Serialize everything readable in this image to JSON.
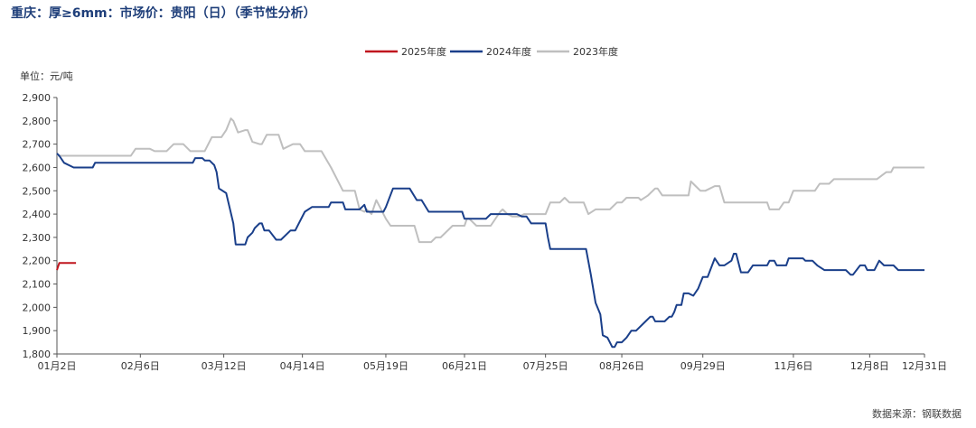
{
  "title": "重庆：厚≥6mm：市场价：贵阳（日）（季节性分析）",
  "source": "数据来源：钢联数据",
  "chart_data": {
    "type": "line",
    "title": "重庆：厚≥6mm：市场价：贵阳（日）（季节性分析）",
    "unit_label": "单位：元/吨",
    "ylim": [
      1800,
      2900
    ],
    "yticks": [
      1800,
      1900,
      2000,
      2100,
      2200,
      2300,
      2400,
      2500,
      2600,
      2700,
      2800,
      2900
    ],
    "ytick_labels": [
      "1,800",
      "1,900",
      "2,000",
      "2,100",
      "2,200",
      "2,300",
      "2,400",
      "2,500",
      "2,600",
      "2,700",
      "2,800",
      "2,900"
    ],
    "xticks": [
      "01-02",
      "02-06",
      "03-12",
      "04-14",
      "05-19",
      "06-21",
      "07-25",
      "08-26",
      "09-29",
      "11-06",
      "12-08",
      "12-31"
    ],
    "xtick_labels": [
      "01月2日",
      "02月6日",
      "03月12日",
      "04月14日",
      "05月19日",
      "06月21日",
      "07月25日",
      "08月26日",
      "09月29日",
      "11月6日",
      "12月8日",
      "12月31日"
    ],
    "legend_position": "top-center",
    "grid": false,
    "series": [
      {
        "name": "2025年度",
        "color": "#c0161e",
        "points": [
          [
            "01-02",
            2160
          ],
          [
            "01-03",
            2190
          ],
          [
            "01-04",
            2190
          ],
          [
            "01-10",
            2190
          ]
        ]
      },
      {
        "name": "2024年度",
        "color": "#1a3f8a",
        "points": [
          [
            "01-02",
            2660
          ],
          [
            "01-03",
            2650
          ],
          [
            "01-05",
            2620
          ],
          [
            "01-09",
            2600
          ],
          [
            "01-17",
            2600
          ],
          [
            "01-18",
            2620
          ],
          [
            "02-23",
            2620
          ],
          [
            "02-28",
            2620
          ],
          [
            "02-29",
            2640
          ],
          [
            "03-03",
            2640
          ],
          [
            "03-04",
            2630
          ],
          [
            "03-06",
            2630
          ],
          [
            "03-08",
            2610
          ],
          [
            "03-09",
            2580
          ],
          [
            "03-10",
            2510
          ],
          [
            "03-13",
            2490
          ],
          [
            "03-16",
            2360
          ],
          [
            "03-17",
            2270
          ],
          [
            "03-21",
            2270
          ],
          [
            "03-22",
            2300
          ],
          [
            "03-24",
            2320
          ],
          [
            "03-25",
            2340
          ],
          [
            "03-27",
            2360
          ],
          [
            "03-28",
            2360
          ],
          [
            "03-29",
            2330
          ],
          [
            "03-31",
            2330
          ],
          [
            "04-03",
            2290
          ],
          [
            "04-05",
            2290
          ],
          [
            "04-09",
            2330
          ],
          [
            "04-11",
            2330
          ],
          [
            "04-13",
            2370
          ],
          [
            "04-15",
            2410
          ],
          [
            "04-18",
            2430
          ],
          [
            "04-25",
            2430
          ],
          [
            "04-26",
            2450
          ],
          [
            "05-01",
            2450
          ],
          [
            "05-02",
            2420
          ],
          [
            "05-08",
            2420
          ],
          [
            "05-10",
            2440
          ],
          [
            "05-11",
            2410
          ],
          [
            "05-18",
            2410
          ],
          [
            "05-19",
            2430
          ],
          [
            "05-22",
            2510
          ],
          [
            "05-29",
            2510
          ],
          [
            "06-01",
            2460
          ],
          [
            "06-03",
            2460
          ],
          [
            "06-06",
            2410
          ],
          [
            "06-20",
            2410
          ],
          [
            "06-21",
            2380
          ],
          [
            "06-30",
            2380
          ],
          [
            "07-02",
            2400
          ],
          [
            "07-13",
            2400
          ],
          [
            "07-15",
            2390
          ],
          [
            "07-17",
            2390
          ],
          [
            "07-19",
            2360
          ],
          [
            "07-25",
            2360
          ],
          [
            "07-26",
            2300
          ],
          [
            "07-27",
            2250
          ],
          [
            "08-11",
            2250
          ],
          [
            "08-13",
            2140
          ],
          [
            "08-15",
            2020
          ],
          [
            "08-17",
            1970
          ],
          [
            "08-18",
            1880
          ],
          [
            "08-20",
            1870
          ],
          [
            "08-22",
            1830
          ],
          [
            "08-23",
            1830
          ],
          [
            "08-24",
            1850
          ],
          [
            "08-26",
            1850
          ],
          [
            "08-28",
            1870
          ],
          [
            "08-30",
            1900
          ],
          [
            "09-01",
            1900
          ],
          [
            "09-05",
            1940
          ],
          [
            "09-07",
            1960
          ],
          [
            "09-08",
            1960
          ],
          [
            "09-09",
            1940
          ],
          [
            "09-13",
            1940
          ],
          [
            "09-15",
            1960
          ],
          [
            "09-16",
            1960
          ],
          [
            "09-17",
            1980
          ],
          [
            "09-18",
            2010
          ],
          [
            "09-20",
            2010
          ],
          [
            "09-21",
            2060
          ],
          [
            "09-23",
            2060
          ],
          [
            "09-25",
            2050
          ],
          [
            "09-27",
            2080
          ],
          [
            "09-29",
            2130
          ],
          [
            "10-01",
            2130
          ],
          [
            "10-04",
            2210
          ],
          [
            "10-06",
            2180
          ],
          [
            "10-08",
            2180
          ],
          [
            "10-11",
            2200
          ],
          [
            "10-12",
            2230
          ],
          [
            "10-13",
            2230
          ],
          [
            "10-15",
            2150
          ],
          [
            "10-18",
            2150
          ],
          [
            "10-20",
            2180
          ],
          [
            "10-26",
            2180
          ],
          [
            "10-27",
            2200
          ],
          [
            "10-29",
            2200
          ],
          [
            "10-30",
            2180
          ],
          [
            "11-03",
            2180
          ],
          [
            "11-04",
            2210
          ],
          [
            "11-10",
            2210
          ],
          [
            "11-11",
            2200
          ],
          [
            "11-14",
            2200
          ],
          [
            "11-16",
            2180
          ],
          [
            "11-19",
            2160
          ],
          [
            "11-28",
            2160
          ],
          [
            "11-30",
            2140
          ],
          [
            "12-01",
            2140
          ],
          [
            "12-04",
            2180
          ],
          [
            "12-06",
            2180
          ],
          [
            "12-07",
            2160
          ],
          [
            "12-10",
            2160
          ],
          [
            "12-12",
            2200
          ],
          [
            "12-14",
            2180
          ],
          [
            "12-18",
            2180
          ],
          [
            "12-20",
            2160
          ],
          [
            "12-31",
            2160
          ]
        ]
      },
      {
        "name": "2023年度",
        "color": "#bfbfbf",
        "points": [
          [
            "01-02",
            2650
          ],
          [
            "02-02",
            2650
          ],
          [
            "02-04",
            2680
          ],
          [
            "02-10",
            2680
          ],
          [
            "02-12",
            2670
          ],
          [
            "02-17",
            2670
          ],
          [
            "02-20",
            2700
          ],
          [
            "02-24",
            2700
          ],
          [
            "02-27",
            2670
          ],
          [
            "03-04",
            2670
          ],
          [
            "03-07",
            2730
          ],
          [
            "03-11",
            2730
          ],
          [
            "03-13",
            2760
          ],
          [
            "03-15",
            2810
          ],
          [
            "03-16",
            2800
          ],
          [
            "03-18",
            2750
          ],
          [
            "03-21",
            2760
          ],
          [
            "03-22",
            2760
          ],
          [
            "03-24",
            2710
          ],
          [
            "03-27",
            2700
          ],
          [
            "03-28",
            2700
          ],
          [
            "03-30",
            2740
          ],
          [
            "04-04",
            2740
          ],
          [
            "04-06",
            2680
          ],
          [
            "04-10",
            2700
          ],
          [
            "04-13",
            2700
          ],
          [
            "04-15",
            2670
          ],
          [
            "04-22",
            2670
          ],
          [
            "04-26",
            2600
          ],
          [
            "04-29",
            2540
          ],
          [
            "05-01",
            2500
          ],
          [
            "05-06",
            2500
          ],
          [
            "05-08",
            2420
          ],
          [
            "05-10",
            2410
          ],
          [
            "05-11",
            2420
          ],
          [
            "05-13",
            2400
          ],
          [
            "05-15",
            2460
          ],
          [
            "05-17",
            2420
          ],
          [
            "05-19",
            2380
          ],
          [
            "05-21",
            2350
          ],
          [
            "05-31",
            2350
          ],
          [
            "06-02",
            2280
          ],
          [
            "06-07",
            2280
          ],
          [
            "06-09",
            2300
          ],
          [
            "06-11",
            2300
          ],
          [
            "06-16",
            2350
          ],
          [
            "06-21",
            2350
          ],
          [
            "06-22",
            2380
          ],
          [
            "06-23",
            2380
          ],
          [
            "06-26",
            2350
          ],
          [
            "07-02",
            2350
          ],
          [
            "07-06",
            2410
          ],
          [
            "07-07",
            2420
          ],
          [
            "07-09",
            2400
          ],
          [
            "07-11",
            2390
          ],
          [
            "07-14",
            2390
          ],
          [
            "07-16",
            2400
          ],
          [
            "07-25",
            2400
          ],
          [
            "07-27",
            2450
          ],
          [
            "07-31",
            2450
          ],
          [
            "08-02",
            2470
          ],
          [
            "08-04",
            2450
          ],
          [
            "08-10",
            2450
          ],
          [
            "08-12",
            2400
          ],
          [
            "08-15",
            2420
          ],
          [
            "08-21",
            2420
          ],
          [
            "08-24",
            2450
          ],
          [
            "08-26",
            2450
          ],
          [
            "08-28",
            2470
          ],
          [
            "09-02",
            2470
          ],
          [
            "09-03",
            2460
          ],
          [
            "09-06",
            2480
          ],
          [
            "09-09",
            2510
          ],
          [
            "09-10",
            2510
          ],
          [
            "09-12",
            2480
          ],
          [
            "09-23",
            2480
          ],
          [
            "09-24",
            2540
          ],
          [
            "09-26",
            2520
          ],
          [
            "09-28",
            2500
          ],
          [
            "09-30",
            2500
          ],
          [
            "10-04",
            2520
          ],
          [
            "10-06",
            2520
          ],
          [
            "10-08",
            2450
          ],
          [
            "10-26",
            2450
          ],
          [
            "10-27",
            2420
          ],
          [
            "10-31",
            2420
          ],
          [
            "11-02",
            2450
          ],
          [
            "11-04",
            2450
          ],
          [
            "11-06",
            2500
          ],
          [
            "11-15",
            2500
          ],
          [
            "11-17",
            2530
          ],
          [
            "11-21",
            2530
          ],
          [
            "11-23",
            2550
          ],
          [
            "12-11",
            2550
          ],
          [
            "12-15",
            2580
          ],
          [
            "12-17",
            2580
          ],
          [
            "12-18",
            2600
          ],
          [
            "12-31",
            2600
          ]
        ]
      }
    ]
  }
}
